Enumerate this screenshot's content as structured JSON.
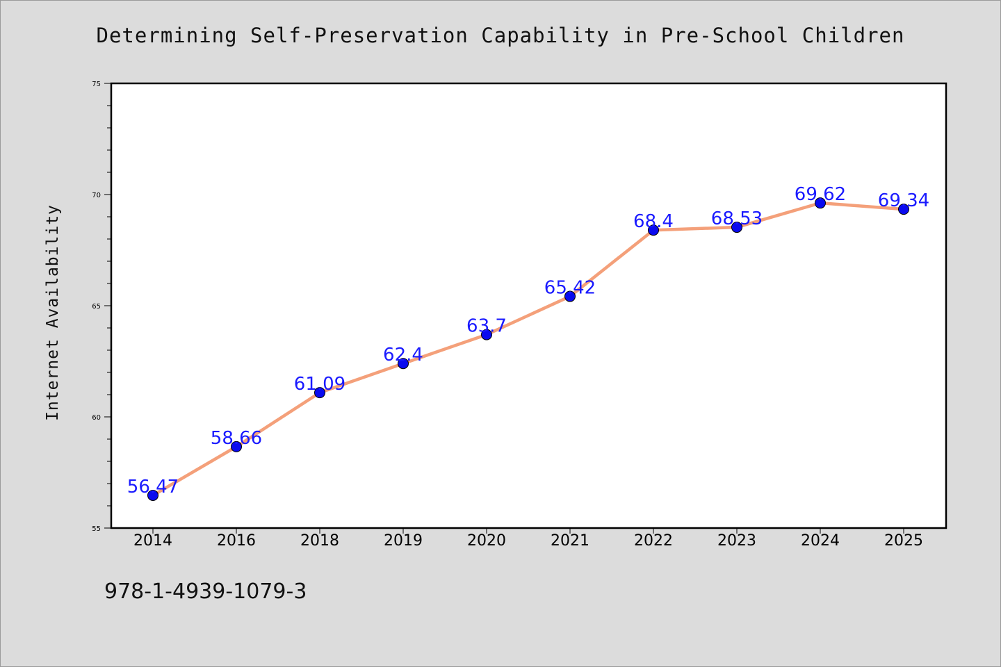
{
  "chart_data": {
    "type": "line",
    "title": "Determining Self-Preservation Capability in Pre-School Children",
    "xlabel": "",
    "ylabel": "Internet Availability",
    "categories": [
      "2014",
      "2016",
      "2018",
      "2019",
      "2020",
      "2021",
      "2022",
      "2023",
      "2024",
      "2025"
    ],
    "values": [
      56.47,
      58.66,
      61.09,
      62.4,
      63.7,
      65.42,
      68.4,
      68.53,
      69.62,
      69.34
    ],
    "data_labels": [
      "56.47",
      "58.66",
      "61.09",
      "62.4",
      "63.7",
      "65.42",
      "68.4",
      "68.53",
      "69.62",
      "69.34"
    ],
    "ylim": [
      55,
      75
    ],
    "yticks": [
      55,
      60,
      65,
      70,
      75
    ],
    "grid": false,
    "legend": "none",
    "line_color": "#f4a07a",
    "marker_color": "#0a0aef",
    "label_color": "#1a1aff"
  },
  "footer": {
    "isbn": "978-1-4939-1079-3"
  }
}
